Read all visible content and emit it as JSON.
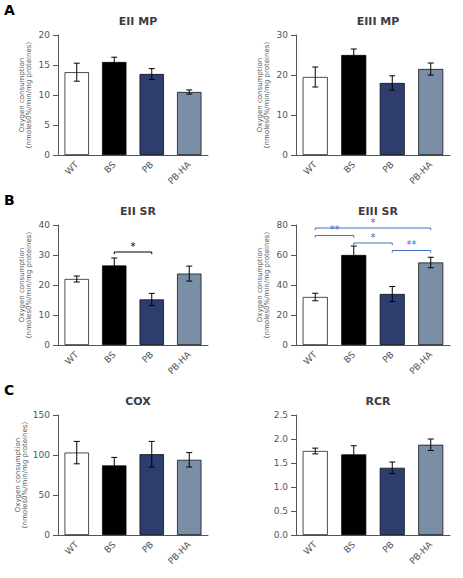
{
  "chart_data": [
    {
      "type": "bar",
      "title": "EII MP",
      "ylabel": "Oxygen consumption\n(nmoles0%/min/mg proteines)",
      "annotations": [
        "A"
      ],
      "categories": [
        "WT",
        "BS",
        "PB",
        "PB-HA"
      ],
      "values": [
        13.8,
        15.5,
        13.5,
        10.5
      ],
      "errors": [
        1.5,
        0.8,
        0.9,
        0.35
      ],
      "colors": [
        "white",
        "black",
        "#2d3d6e",
        "#7a8fa6"
      ],
      "ylim": [
        0,
        20
      ],
      "yticks": [
        0,
        5,
        10,
        15,
        20
      ],
      "grid": false,
      "significance": []
    },
    {
      "type": "bar",
      "title": "EIII MP",
      "ylabel": "Oxygen consumption\n(nmoles0%/min/mg proteines)",
      "categories": [
        "WT",
        "BS",
        "PB",
        "PB-HA"
      ],
      "values": [
        19.5,
        25.0,
        18.0,
        21.5
      ],
      "errors": [
        2.5,
        1.5,
        1.8,
        1.5
      ],
      "colors": [
        "white",
        "black",
        "#2d3d6e",
        "#7a8fa6"
      ],
      "ylim": [
        0,
        30
      ],
      "yticks": [
        0,
        10,
        20,
        30
      ],
      "grid": false,
      "significance": []
    },
    {
      "type": "bar",
      "title": "EII SR",
      "ylabel": "Oxygen consumption\n(nmoles0%/min/mg proteines)",
      "annotations": [
        "B"
      ],
      "categories": [
        "WT",
        "BS",
        "PB",
        "PB-HA"
      ],
      "values": [
        22.0,
        26.5,
        15.2,
        23.8
      ],
      "errors": [
        1.0,
        2.5,
        2.0,
        2.5
      ],
      "colors": [
        "white",
        "black",
        "#2d3d6e",
        "#7a8fa6"
      ],
      "ylim": [
        0,
        40
      ],
      "yticks": [
        0,
        10,
        20,
        30,
        40
      ],
      "grid": false,
      "significance": [
        {
          "from": "BS",
          "to": "PB",
          "y": 31,
          "label": "*",
          "color": "black"
        }
      ]
    },
    {
      "type": "bar",
      "title": "EIII SR",
      "ylabel": "Oxygen consumption\n(nmoles0%/min/mg proteines)",
      "categories": [
        "WT",
        "BS",
        "PB",
        "PB-HA"
      ],
      "values": [
        32.0,
        60.0,
        34.0,
        55.0
      ],
      "errors": [
        2.5,
        6.0,
        5.0,
        3.5
      ],
      "colors": [
        "white",
        "black",
        "#2d3d6e",
        "#7a8fa6"
      ],
      "ylim": [
        0,
        80
      ],
      "yticks": [
        0,
        20,
        40,
        60,
        80
      ],
      "grid": false,
      "significance": [
        {
          "from": "WT",
          "to": "BS",
          "y": 73,
          "label": "**",
          "color": "#4472c4"
        },
        {
          "from": "BS",
          "to": "PB",
          "y": 68,
          "label": "*",
          "color": "#4472c4"
        },
        {
          "from": "PB",
          "to": "PB-HA",
          "y": 63,
          "label": "**",
          "color": "#4472c4"
        },
        {
          "from": "WT",
          "to": "PB-HA",
          "y": 78,
          "label": "*",
          "color": "#4472c4"
        }
      ]
    },
    {
      "type": "bar",
      "title": "COX",
      "ylabel": "Oxygen consumption\n(nmoles0%/min/mg proteines)",
      "annotations": [
        "C"
      ],
      "categories": [
        "WT",
        "BS",
        "PB",
        "PB-HA"
      ],
      "values": [
        103.0,
        87.0,
        101.0,
        94.0
      ],
      "errors": [
        14.0,
        10.0,
        16.0,
        9.0
      ],
      "colors": [
        "white",
        "black",
        "#2d3d6e",
        "#7a8fa6"
      ],
      "ylim": [
        0,
        150
      ],
      "yticks": [
        0,
        50,
        100,
        150
      ],
      "grid": false,
      "significance": []
    },
    {
      "type": "bar",
      "title": "RCR",
      "categories": [
        "WT",
        "BS",
        "PB",
        "PB-HA"
      ],
      "values": [
        1.75,
        1.68,
        1.4,
        1.88
      ],
      "errors": [
        0.06,
        0.18,
        0.12,
        0.12
      ],
      "colors": [
        "white",
        "black",
        "#2d3d6e",
        "#7a8fa6"
      ],
      "ylim": [
        0.0,
        2.5
      ],
      "yticks": [
        {
          "value": 0,
          "label": "0.0"
        },
        0.5,
        {
          "value": 1,
          "label": "1.0"
        },
        1.5,
        {
          "value": 2,
          "label": "2.0"
        },
        2.5
      ],
      "grid": false,
      "significance": []
    }
  ]
}
